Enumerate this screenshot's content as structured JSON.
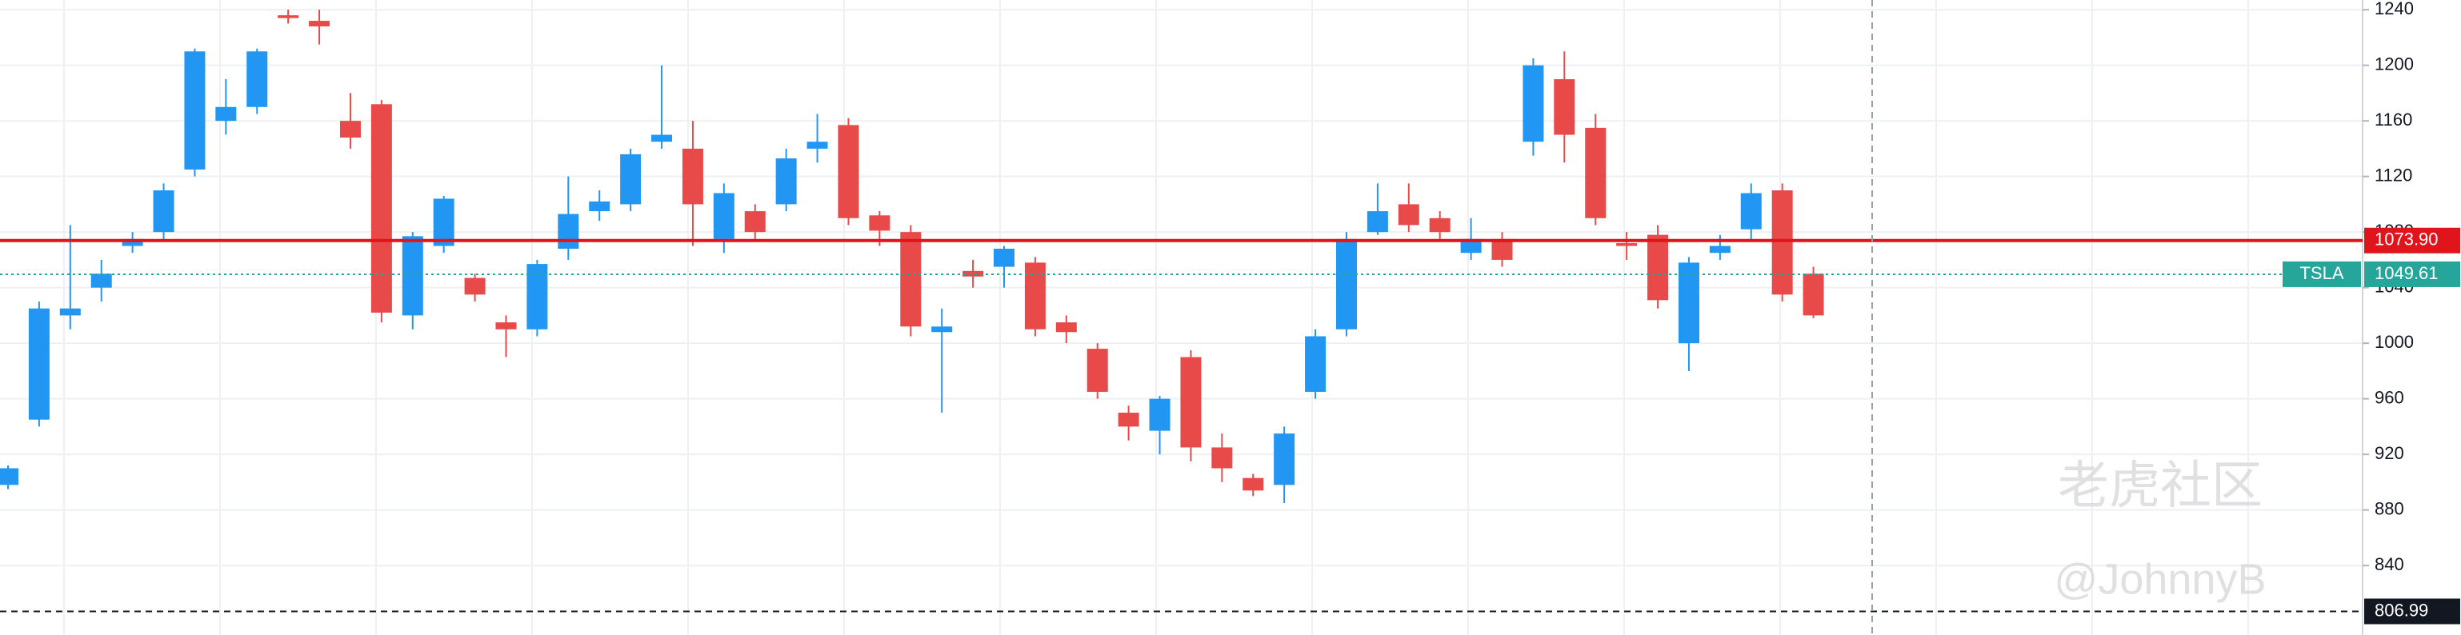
{
  "chart_data": {
    "type": "candlestick",
    "series": [
      {
        "name": "TSLA",
        "up_color": "#2196f3",
        "down_color": "#e84a4a",
        "open": [
          898,
          945,
          1020,
          1040,
          1070,
          1080,
          1125,
          1160,
          1170,
          1236,
          1232,
          1160,
          1172,
          1020,
          1070,
          1047,
          1015,
          1010,
          1068,
          1095,
          1100,
          1145,
          1140,
          1075,
          1095,
          1100,
          1140,
          1157,
          1092,
          1080,
          1008,
          1052,
          1055,
          1058,
          1015,
          996,
          950,
          937,
          990,
          925,
          903,
          898,
          965,
          1010,
          1080,
          1100,
          1090,
          1065,
          1075,
          1145,
          1190,
          1155,
          1072,
          1078,
          1000,
          1065,
          1082,
          1110,
          1050
        ],
        "high": [
          912,
          1030,
          1085,
          1060,
          1080,
          1115,
          1212,
          1190,
          1212,
          1240,
          1240,
          1180,
          1175,
          1080,
          1106,
          1050,
          1020,
          1060,
          1120,
          1110,
          1140,
          1200,
          1160,
          1115,
          1100,
          1140,
          1165,
          1162,
          1095,
          1085,
          1025,
          1060,
          1070,
          1062,
          1020,
          1000,
          955,
          962,
          995,
          935,
          906,
          940,
          1010,
          1080,
          1115,
          1115,
          1095,
          1090,
          1080,
          1205,
          1210,
          1165,
          1080,
          1085,
          1062,
          1078,
          1115,
          1115,
          1055
        ],
        "low": [
          895,
          940,
          1010,
          1030,
          1065,
          1075,
          1120,
          1150,
          1165,
          1230,
          1215,
          1140,
          1015,
          1010,
          1065,
          1030,
          990,
          1005,
          1060,
          1088,
          1095,
          1140,
          1070,
          1065,
          1075,
          1095,
          1130,
          1085,
          1070,
          1005,
          950,
          1040,
          1040,
          1005,
          1000,
          960,
          930,
          920,
          915,
          900,
          890,
          885,
          960,
          1005,
          1078,
          1080,
          1075,
          1060,
          1055,
          1135,
          1130,
          1085,
          1060,
          1025,
          980,
          1060,
          1075,
          1030,
          1018
        ],
        "close": [
          910,
          1025,
          1025,
          1050,
          1075,
          1110,
          1210,
          1170,
          1210,
          1234,
          1228,
          1148,
          1022,
          1077,
          1104,
          1035,
          1010,
          1057,
          1093,
          1102,
          1136,
          1150,
          1100,
          1108,
          1080,
          1133,
          1145,
          1090,
          1081,
          1012,
          1012,
          1048,
          1068,
          1010,
          1008,
          965,
          940,
          960,
          925,
          910,
          894,
          935,
          1005,
          1075,
          1095,
          1085,
          1080,
          1075,
          1060,
          1200,
          1150,
          1090,
          1070,
          1031,
          1058,
          1070,
          1108,
          1035,
          1020
        ]
      }
    ],
    "ylim": [
      790,
      1247
    ],
    "yticks": [
      840,
      880,
      920,
      960,
      1000,
      1040,
      1080,
      1120,
      1160,
      1200,
      1240
    ],
    "grid": true,
    "last_price": 1049.61,
    "price_lines": [
      {
        "value": 1073.9,
        "label": "1073.90",
        "color": "#e0151b"
      },
      {
        "value": 806.99,
        "color": "#131722"
      }
    ],
    "watermark": [
      "老虎社区",
      "@JohnnyB"
    ]
  }
}
